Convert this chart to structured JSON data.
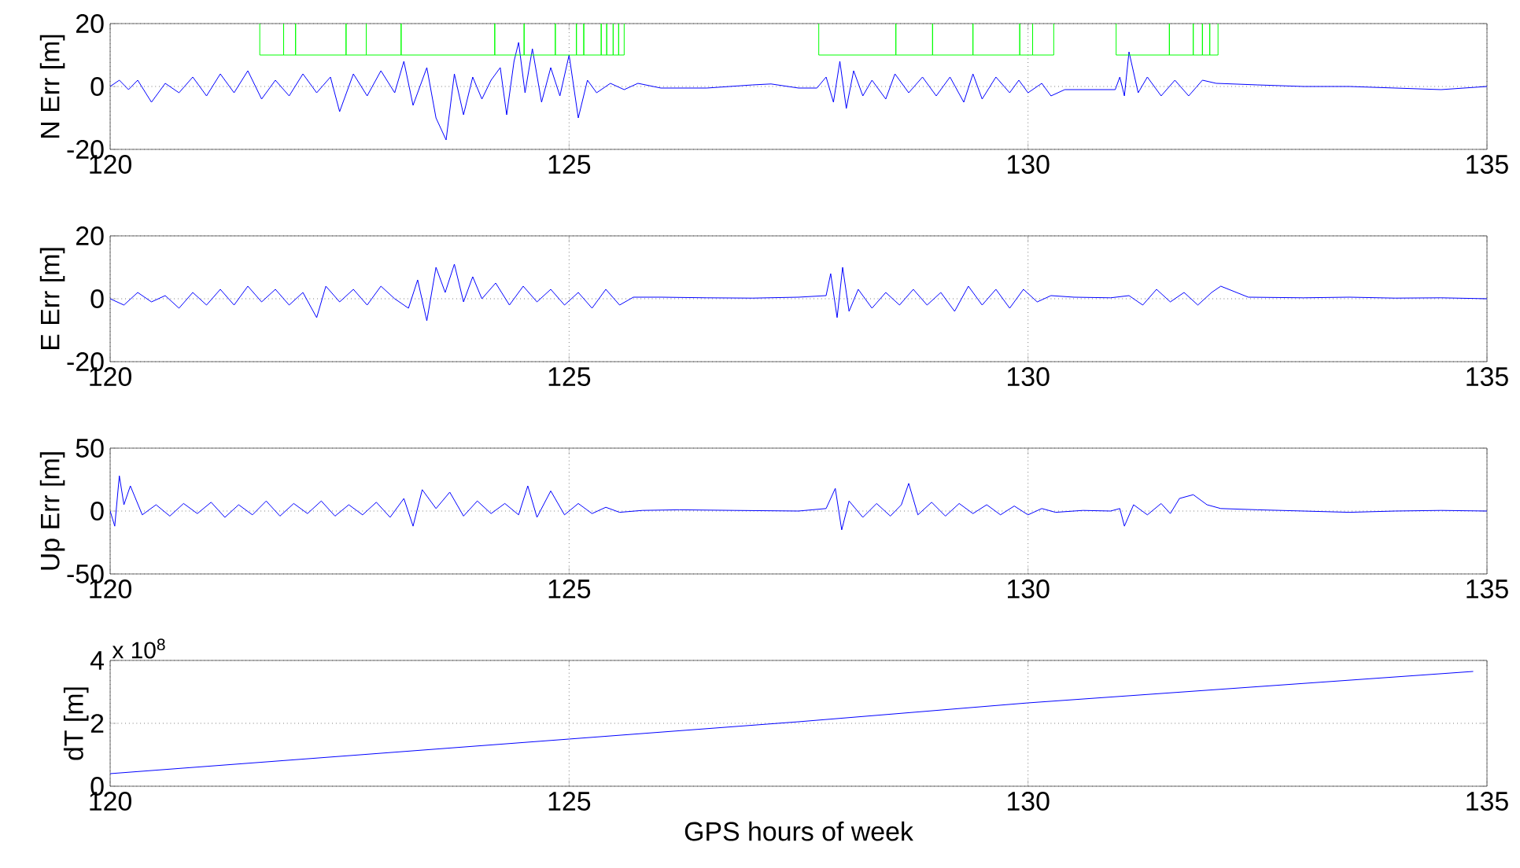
{
  "chart_data": [
    {
      "type": "line",
      "ylabel": "N Err [m]",
      "xlim": [
        120,
        135
      ],
      "xticks": [
        120,
        125,
        130,
        135
      ],
      "ylim": [
        -20,
        20
      ],
      "yticks": [
        -20,
        0,
        20
      ],
      "grid": true,
      "series": [
        {
          "color": "#0000ff",
          "x": [
            120,
            120.1,
            120.2,
            120.3,
            120.45,
            120.6,
            120.75,
            120.9,
            121.05,
            121.2,
            121.35,
            121.5,
            121.65,
            121.8,
            121.95,
            122.1,
            122.25,
            122.4,
            122.5,
            122.65,
            122.8,
            122.95,
            123.1,
            123.2,
            123.3,
            123.45,
            123.55,
            123.66,
            123.75,
            123.85,
            123.95,
            124.05,
            124.15,
            124.25,
            124.32,
            124.4,
            124.45,
            124.52,
            124.6,
            124.7,
            124.8,
            124.9,
            125.0,
            125.1,
            125.2,
            125.3,
            125.45,
            125.6,
            125.75,
            126.0,
            126.5,
            127.0,
            127.2,
            127.5,
            127.7,
            127.8,
            127.88,
            127.95,
            128.02,
            128.1,
            128.2,
            128.3,
            128.45,
            128.55,
            128.7,
            128.85,
            129.0,
            129.15,
            129.3,
            129.4,
            129.5,
            129.65,
            129.8,
            129.9,
            130.0,
            130.15,
            130.25,
            130.4,
            130.8,
            130.95,
            131.0,
            131.05,
            131.1,
            131.2,
            131.3,
            131.45,
            131.6,
            131.75,
            131.9,
            132.05,
            132.5,
            133.0,
            133.5,
            134.0,
            134.5,
            135.0
          ],
          "values": [
            0,
            2,
            -1,
            2,
            -5,
            1,
            -2,
            3,
            -3,
            4,
            -2,
            5,
            -4,
            2,
            -3,
            4,
            -2,
            3,
            -8,
            4,
            -3,
            5,
            -2,
            8,
            -6,
            6,
            -10,
            -17,
            4,
            -9,
            3,
            -4,
            2,
            6,
            -9,
            8,
            14,
            -2,
            12,
            -5,
            6,
            -3,
            10,
            -10,
            2,
            -2,
            1,
            -1,
            1,
            -0.5,
            -0.5,
            0.5,
            0.8,
            -0.5,
            -0.5,
            3,
            -5,
            8,
            -7,
            5,
            -3,
            2,
            -4,
            4,
            -2,
            3,
            -3,
            3,
            -5,
            4,
            -4,
            3,
            -2,
            2,
            -2,
            1,
            -3,
            -1,
            -1,
            -1,
            3,
            -3,
            11,
            -2,
            3,
            -3,
            2,
            -3,
            2,
            1,
            0.5,
            0,
            0,
            -0.5,
            -1,
            0
          ]
        },
        {
          "color": "#00ff00",
          "x": [
            121.63,
            121.63,
            121.89,
            121.89,
            121.89,
            122.02,
            122.02,
            122.02,
            122.57,
            122.57,
            122.57,
            122.79,
            122.79,
            122.79,
            123.17,
            123.17,
            123.17,
            124.19,
            124.19,
            124.19,
            124.51,
            124.51,
            124.51,
            124.85,
            124.85,
            124.85,
            125.08,
            125.08,
            125.08,
            125.16,
            125.16,
            125.16,
            125.35,
            125.35,
            125.35,
            125.41,
            125.41,
            125.41,
            125.48,
            125.48,
            125.48,
            125.54,
            125.54,
            125.54,
            125.6,
            125.6,
            126.5,
            127.72,
            127.72,
            128.56,
            128.56,
            128.56,
            128.96,
            128.96,
            128.96,
            129.4,
            129.4,
            129.4,
            129.91,
            129.91,
            129.91,
            130.05,
            130.05,
            130.05,
            130.28,
            130.28,
            130.6,
            130.96,
            130.96,
            131.54,
            131.54,
            131.54,
            131.8,
            131.8,
            131.8,
            131.9,
            131.9,
            131.9,
            131.98,
            131.98,
            131.98,
            132.07,
            132.07
          ],
          "values": [
            20,
            10,
            10,
            20,
            10,
            10,
            20,
            10,
            10,
            20,
            10,
            10,
            20,
            10,
            10,
            20,
            10,
            10,
            20,
            10,
            10,
            20,
            10,
            10,
            20,
            10,
            10,
            20,
            10,
            10,
            20,
            10,
            10,
            20,
            10,
            10,
            20,
            10,
            10,
            20,
            10,
            10,
            20,
            10,
            10,
            20,
            null,
            20,
            10,
            10,
            20,
            10,
            10,
            20,
            10,
            10,
            20,
            10,
            10,
            20,
            10,
            10,
            20,
            10,
            10,
            20,
            null,
            20,
            10,
            10,
            20,
            10,
            10,
            20,
            10,
            10,
            20,
            10,
            10,
            20,
            10,
            10,
            20
          ]
        }
      ]
    },
    {
      "type": "line",
      "ylabel": "E Err [m]",
      "xlim": [
        120,
        135
      ],
      "xticks": [
        120,
        125,
        130,
        135
      ],
      "ylim": [
        -20,
        20
      ],
      "yticks": [
        -20,
        0,
        20
      ],
      "grid": true,
      "series": [
        {
          "color": "#0000ff",
          "x": [
            120,
            120.15,
            120.3,
            120.45,
            120.6,
            120.75,
            120.9,
            121.05,
            121.2,
            121.35,
            121.5,
            121.65,
            121.8,
            121.95,
            122.1,
            122.25,
            122.35,
            122.5,
            122.65,
            122.8,
            122.95,
            123.1,
            123.25,
            123.35,
            123.45,
            123.55,
            123.65,
            123.75,
            123.85,
            123.95,
            124.05,
            124.2,
            124.35,
            124.5,
            124.65,
            124.8,
            124.95,
            125.1,
            125.25,
            125.4,
            125.55,
            125.7,
            126.0,
            126.5,
            127.0,
            127.5,
            127.8,
            127.85,
            127.92,
            127.98,
            128.05,
            128.15,
            128.3,
            128.45,
            128.6,
            128.75,
            128.9,
            129.05,
            129.2,
            129.35,
            129.5,
            129.65,
            129.8,
            129.95,
            130.1,
            130.25,
            130.5,
            130.9,
            131.1,
            131.25,
            131.4,
            131.55,
            131.7,
            131.85,
            132.0,
            132.1,
            132.4,
            133.0,
            133.5,
            134.0,
            134.5,
            135.0
          ],
          "values": [
            0,
            -2,
            2,
            -1,
            1,
            -3,
            2,
            -2,
            3,
            -2,
            4,
            -1,
            3,
            -2,
            2,
            -6,
            4,
            -1,
            3,
            -2,
            4,
            0,
            -3,
            6,
            -7,
            10,
            2,
            11,
            -1,
            7,
            0,
            5,
            -2,
            4,
            -1,
            3,
            -2,
            2,
            -3,
            3,
            -2,
            0.5,
            0.5,
            0.3,
            0.2,
            0.5,
            1,
            8,
            -6,
            10,
            -4,
            3,
            -3,
            2,
            -2,
            3,
            -2,
            2,
            -4,
            4,
            -2,
            3,
            -3,
            3,
            -1,
            1,
            0.5,
            0.3,
            1,
            -2,
            3,
            -1,
            2,
            -2,
            2,
            4,
            0.5,
            0.3,
            0.5,
            0.2,
            0.3,
            0
          ]
        }
      ]
    },
    {
      "type": "line",
      "ylabel": "Up Err [m]",
      "xlim": [
        120,
        135
      ],
      "xticks": [
        120,
        125,
        130,
        135
      ],
      "ylim": [
        -50,
        50
      ],
      "yticks": [
        -50,
        0,
        50
      ],
      "grid": true,
      "series": [
        {
          "color": "#0000ff",
          "x": [
            120,
            120.05,
            120.1,
            120.15,
            120.22,
            120.35,
            120.5,
            120.65,
            120.8,
            120.95,
            121.1,
            121.25,
            121.4,
            121.55,
            121.7,
            121.85,
            122.0,
            122.15,
            122.3,
            122.45,
            122.6,
            122.75,
            122.9,
            123.05,
            123.2,
            123.3,
            123.4,
            123.55,
            123.7,
            123.85,
            124.0,
            124.15,
            124.3,
            124.45,
            124.55,
            124.65,
            124.8,
            124.95,
            125.1,
            125.25,
            125.4,
            125.55,
            125.8,
            126.2,
            126.8,
            127.5,
            127.8,
            127.9,
            127.97,
            128.05,
            128.2,
            128.35,
            128.5,
            128.62,
            128.7,
            128.8,
            128.95,
            129.1,
            129.25,
            129.4,
            129.55,
            129.7,
            129.85,
            130.0,
            130.15,
            130.3,
            130.6,
            130.9,
            131.0,
            131.05,
            131.15,
            131.3,
            131.45,
            131.55,
            131.65,
            131.8,
            131.95,
            132.1,
            132.5,
            133.0,
            133.5,
            134.0,
            134.5,
            135.0
          ],
          "values": [
            0,
            -12,
            28,
            5,
            20,
            -3,
            5,
            -4,
            6,
            -2,
            7,
            -5,
            5,
            -3,
            8,
            -4,
            6,
            -2,
            8,
            -4,
            5,
            -3,
            7,
            -5,
            10,
            -12,
            17,
            2,
            15,
            -4,
            8,
            -2,
            6,
            -3,
            20,
            -5,
            16,
            -3,
            6,
            -2,
            3,
            -1,
            0.5,
            1,
            0.5,
            0,
            2,
            18,
            -15,
            8,
            -5,
            6,
            -4,
            5,
            22,
            -3,
            7,
            -4,
            6,
            -2,
            5,
            -3,
            4,
            -3,
            2,
            -1,
            0.5,
            0,
            2,
            -12,
            5,
            -3,
            6,
            -2,
            10,
            13,
            5,
            2,
            1,
            0,
            -1,
            0,
            0.5,
            0
          ]
        }
      ]
    },
    {
      "type": "line",
      "ylabel": "dT [m]",
      "xlabel": "GPS hours of week",
      "annotations": [
        "x 10$^{8}$"
      ],
      "xlim": [
        120,
        135
      ],
      "xticks": [
        120,
        125,
        130,
        135
      ],
      "ylim": [
        0,
        4
      ],
      "yticks": [
        0,
        2,
        4
      ],
      "grid": true,
      "series": [
        {
          "color": "#0000ff",
          "x": [
            120,
            125,
            127.5,
            130,
            134.85
          ],
          "values": [
            0.4,
            1.5,
            2.05,
            2.65,
            3.65
          ]
        }
      ]
    }
  ]
}
